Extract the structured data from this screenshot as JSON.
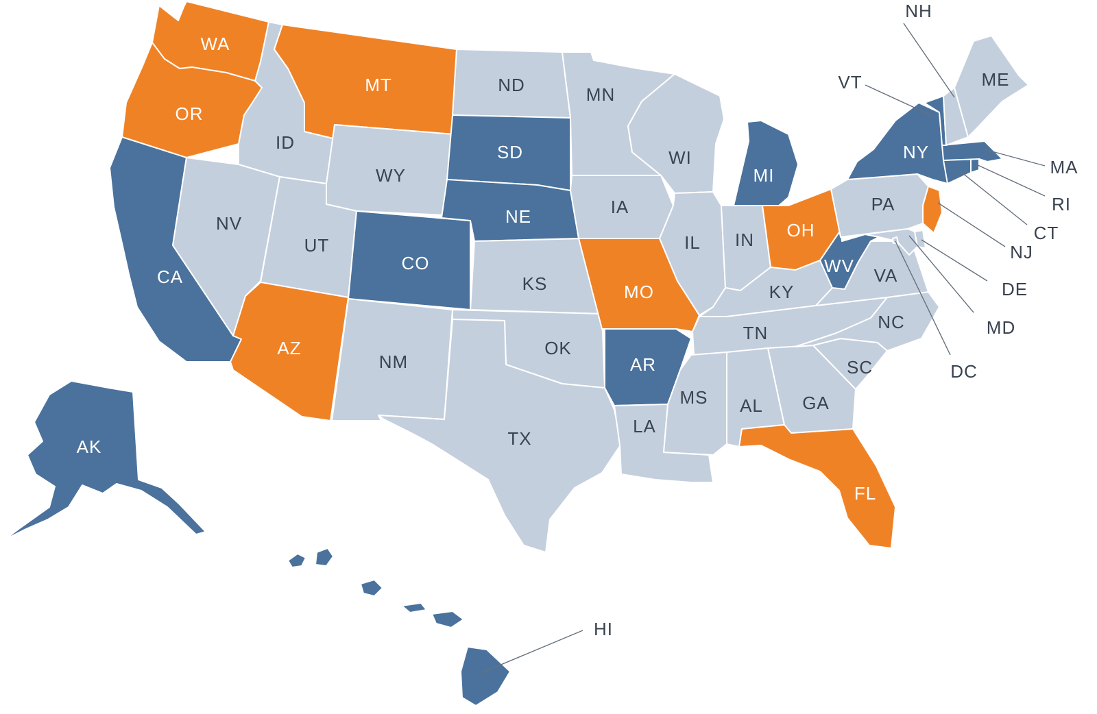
{
  "colors": {
    "orange": "#f08226",
    "blue": "#4a729c",
    "gray": "#c4cfdd",
    "label_light": "#ffffff",
    "label_dark": "#3a4350"
  },
  "states": {
    "WA": {
      "label": "WA",
      "fill": "orange"
    },
    "OR": {
      "label": "OR",
      "fill": "orange"
    },
    "CA": {
      "label": "CA",
      "fill": "blue"
    },
    "ID": {
      "label": "ID",
      "fill": "gray"
    },
    "NV": {
      "label": "NV",
      "fill": "gray"
    },
    "MT": {
      "label": "MT",
      "fill": "orange"
    },
    "WY": {
      "label": "WY",
      "fill": "gray"
    },
    "UT": {
      "label": "UT",
      "fill": "gray"
    },
    "AZ": {
      "label": "AZ",
      "fill": "orange"
    },
    "CO": {
      "label": "CO",
      "fill": "blue"
    },
    "NM": {
      "label": "NM",
      "fill": "gray"
    },
    "ND": {
      "label": "ND",
      "fill": "gray"
    },
    "SD": {
      "label": "SD",
      "fill": "blue"
    },
    "NE": {
      "label": "NE",
      "fill": "blue"
    },
    "KS": {
      "label": "KS",
      "fill": "gray"
    },
    "OK": {
      "label": "OK",
      "fill": "gray"
    },
    "TX": {
      "label": "TX",
      "fill": "gray"
    },
    "MN": {
      "label": "MN",
      "fill": "gray"
    },
    "IA": {
      "label": "IA",
      "fill": "gray"
    },
    "MO": {
      "label": "MO",
      "fill": "orange"
    },
    "AR": {
      "label": "AR",
      "fill": "blue"
    },
    "LA": {
      "label": "LA",
      "fill": "gray"
    },
    "WI": {
      "label": "WI",
      "fill": "gray"
    },
    "IL": {
      "label": "IL",
      "fill": "gray"
    },
    "MI": {
      "label": "MI",
      "fill": "blue"
    },
    "IN": {
      "label": "IN",
      "fill": "gray"
    },
    "OH": {
      "label": "OH",
      "fill": "orange"
    },
    "KY": {
      "label": "KY",
      "fill": "gray"
    },
    "TN": {
      "label": "TN",
      "fill": "gray"
    },
    "MS": {
      "label": "MS",
      "fill": "gray"
    },
    "AL": {
      "label": "AL",
      "fill": "gray"
    },
    "GA": {
      "label": "GA",
      "fill": "gray"
    },
    "FL": {
      "label": "FL",
      "fill": "orange"
    },
    "SC": {
      "label": "SC",
      "fill": "gray"
    },
    "NC": {
      "label": "NC",
      "fill": "gray"
    },
    "VA": {
      "label": "VA",
      "fill": "gray"
    },
    "WV": {
      "label": "WV",
      "fill": "blue"
    },
    "PA": {
      "label": "PA",
      "fill": "gray"
    },
    "NY": {
      "label": "NY",
      "fill": "blue"
    },
    "NJ": {
      "label": "NJ",
      "fill": "orange"
    },
    "DE": {
      "label": "DE",
      "fill": "gray"
    },
    "MD": {
      "label": "MD",
      "fill": "gray"
    },
    "DC": {
      "label": "DC",
      "fill": "gray"
    },
    "CT": {
      "label": "CT",
      "fill": "blue"
    },
    "RI": {
      "label": "RI",
      "fill": "blue"
    },
    "MA": {
      "label": "MA",
      "fill": "blue"
    },
    "VT": {
      "label": "VT",
      "fill": "blue"
    },
    "NH": {
      "label": "NH",
      "fill": "gray"
    },
    "ME": {
      "label": "ME",
      "fill": "gray"
    },
    "AK": {
      "label": "AK",
      "fill": "blue"
    },
    "HI": {
      "label": "HI",
      "fill": "blue"
    }
  }
}
